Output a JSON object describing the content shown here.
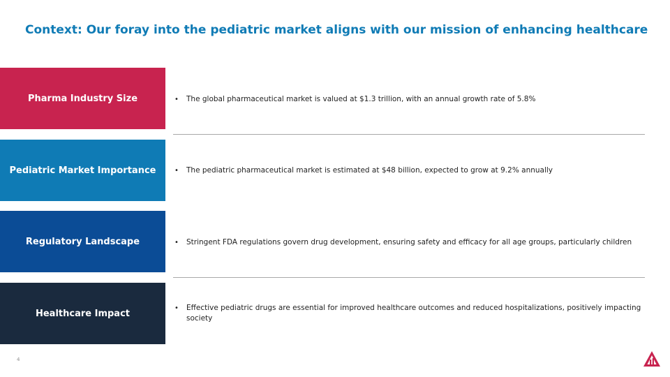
{
  "title": "Context: Our foray into the pediatric market aligns with our mission of enhancing healthcare",
  "rows": [
    {
      "label": "Pharma Industry Size",
      "color": "#c8234f",
      "bullet": "The global pharmaceutical market is valued at $1.3 trillion, with an annual growth rate of 5.8%"
    },
    {
      "label": "Pediatric Market Importance",
      "color": "#0f7bb5",
      "bullet": "The pediatric pharmaceutical market is estimated at $48 billion, expected to grow at 9.2% annually"
    },
    {
      "label": "Regulatory Landscape",
      "color": "#0b4c96",
      "bullet": "Stringent FDA regulations govern drug development, ensuring safety and efficacy for all age groups, particularly children"
    },
    {
      "label": "Healthcare Impact",
      "color": "#1a2a3e",
      "bullet": "Effective pediatric drugs are essential for improved healthcare outcomes and reduced hospitalizations, positively impacting society"
    }
  ],
  "bullet_symbol": "•",
  "page_number": "4",
  "logo_icon": "triangle-logo-icon",
  "logo_color": "#c8234f"
}
